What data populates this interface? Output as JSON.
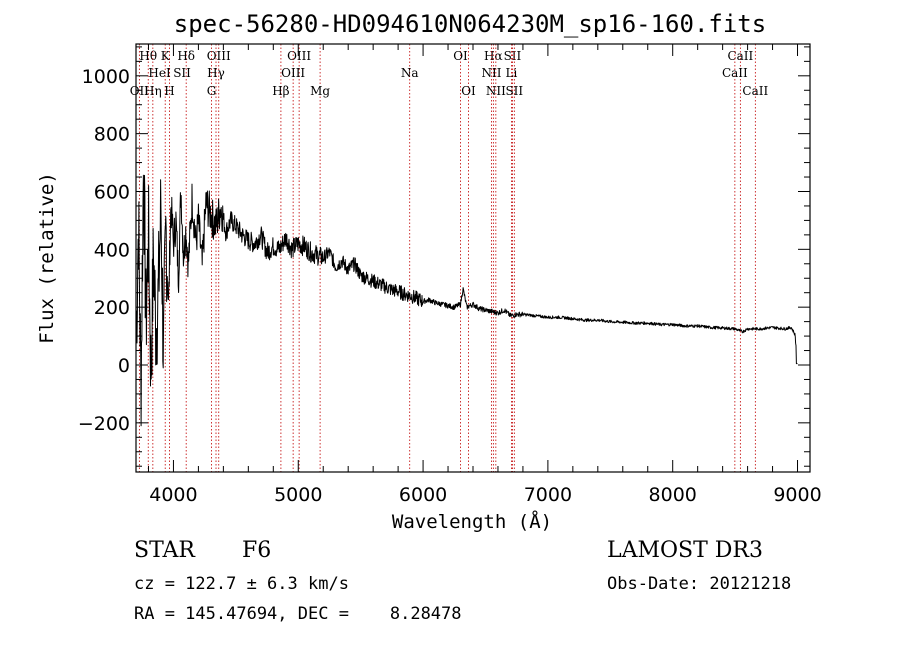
{
  "chart_data": {
    "type": "line",
    "title": "spec-56280-HD094610N064230M_sp16-160.fits",
    "xlabel": "Wavelength (Å)",
    "ylabel": "Flux (relative)",
    "xlim": [
      3700,
      9100
    ],
    "ylim": [
      -370,
      1110
    ],
    "xticks": [
      4000,
      5000,
      6000,
      7000,
      8000,
      9000
    ],
    "xtick_labels": [
      "4000",
      "5000",
      "6000",
      "7000",
      "8000",
      "9000"
    ],
    "yticks": [
      -200,
      0,
      200,
      400,
      600,
      800,
      1000
    ],
    "ytick_labels": [
      "−200",
      "0",
      "200",
      "400",
      "600",
      "800",
      "1000"
    ],
    "series": [
      {
        "name": "spectrum",
        "x": [
          3700,
          3720,
          3740,
          3760,
          3780,
          3800,
          3820,
          3840,
          3860,
          3880,
          3900,
          3920,
          3940,
          3960,
          3980,
          4000,
          4020,
          4040,
          4060,
          4080,
          4100,
          4120,
          4150,
          4180,
          4200,
          4230,
          4260,
          4300,
          4340,
          4380,
          4420,
          4460,
          4500,
          4550,
          4600,
          4650,
          4700,
          4750,
          4800,
          4850,
          4900,
          4950,
          5000,
          5050,
          5100,
          5150,
          5200,
          5250,
          5300,
          5350,
          5400,
          5450,
          5500,
          5550,
          5600,
          5650,
          5700,
          5750,
          5800,
          5850,
          5900,
          5950,
          6000,
          6050,
          6100,
          6150,
          6200,
          6250,
          6300,
          6320,
          6350,
          6400,
          6450,
          6500,
          6550,
          6600,
          6650,
          6700,
          6750,
          6800,
          6900,
          7000,
          7100,
          7200,
          7300,
          7400,
          7500,
          7600,
          7700,
          7800,
          7900,
          8000,
          8100,
          8200,
          8300,
          8400,
          8500,
          8560,
          8600,
          8700,
          8800,
          8900,
          8950,
          8980,
          9000
        ],
        "values": [
          50,
          500,
          -80,
          700,
          150,
          450,
          -30,
          380,
          120,
          250,
          550,
          30,
          480,
          200,
          560,
          420,
          500,
          300,
          610,
          380,
          470,
          350,
          580,
          420,
          500,
          340,
          560,
          520,
          480,
          550,
          460,
          500,
          480,
          450,
          430,
          420,
          450,
          390,
          410,
          400,
          440,
          400,
          420,
          410,
          390,
          380,
          370,
          390,
          340,
          360,
          330,
          350,
          310,
          300,
          290,
          280,
          270,
          260,
          255,
          245,
          240,
          230,
          220,
          225,
          215,
          210,
          205,
          200,
          210,
          265,
          200,
          210,
          195,
          190,
          185,
          180,
          190,
          170,
          175,
          175,
          170,
          165,
          165,
          160,
          155,
          155,
          150,
          148,
          145,
          145,
          140,
          140,
          135,
          135,
          130,
          128,
          125,
          115,
          125,
          125,
          130,
          125,
          130,
          105,
          5
        ]
      }
    ],
    "emission_lines": [
      {
        "label": "OII",
        "wavelength": 3727,
        "row": 3
      },
      {
        "label": "Hθ",
        "wavelength": 3798,
        "row": 1
      },
      {
        "label": "Hη",
        "wavelength": 3835,
        "row": 3
      },
      {
        "label": "K",
        "wavelength": 3934,
        "row": 1
      },
      {
        "label": "H",
        "wavelength": 3968,
        "row": 3
      },
      {
        "label": "Hδ",
        "wavelength": 4102,
        "row": 1
      },
      {
        "label": "OIII",
        "wavelength": 4363,
        "row": 1
      },
      {
        "label": "Hγ",
        "wavelength": 4341,
        "row": 2
      },
      {
        "label": "G",
        "wavelength": 4305,
        "row": 3
      },
      {
        "label": "Hβ",
        "wavelength": 4861,
        "row": 3
      },
      {
        "label": "OIII",
        "wavelength": 5007,
        "row": 1
      },
      {
        "label": "OIII",
        "wavelength": 4959,
        "row": 2
      },
      {
        "label": "Mg",
        "wavelength": 5175,
        "row": 3
      },
      {
        "label": "Na",
        "wavelength": 5893,
        "row": 2
      },
      {
        "label": "OI",
        "wavelength": 6300,
        "row": 1
      },
      {
        "label": "OI",
        "wavelength": 6364,
        "row": 3
      },
      {
        "label": "Hα",
        "wavelength": 6563,
        "row": 1
      },
      {
        "label": "NII",
        "wavelength": 6548,
        "row": 2
      },
      {
        "label": "NII",
        "wavelength": 6583,
        "row": 3
      },
      {
        "label": "SII",
        "wavelength": 6716,
        "row": 1
      },
      {
        "label": "Li",
        "wavelength": 6708,
        "row": 2
      },
      {
        "label": "SII",
        "wavelength": 6731,
        "row": 3
      },
      {
        "label": "CaII",
        "wavelength": 8542,
        "row": 1
      },
      {
        "label": "CaII",
        "wavelength": 8498,
        "row": 2
      },
      {
        "label": "CaII",
        "wavelength": 8662,
        "row": 3
      }
    ],
    "extra_line_labels": [
      "HeI",
      "SII"
    ]
  },
  "info": {
    "object_class": "STAR",
    "subclass": "F6",
    "survey": "LAMOST DR3",
    "cz": "cz = 122.7 ± 6.3 km/s",
    "obs_date": "Obs-Date: 20121218",
    "coords": "RA = 145.47694, DEC =    8.28478"
  },
  "colors": {
    "spectrum": "#000000",
    "line_marker": "#c00000"
  }
}
